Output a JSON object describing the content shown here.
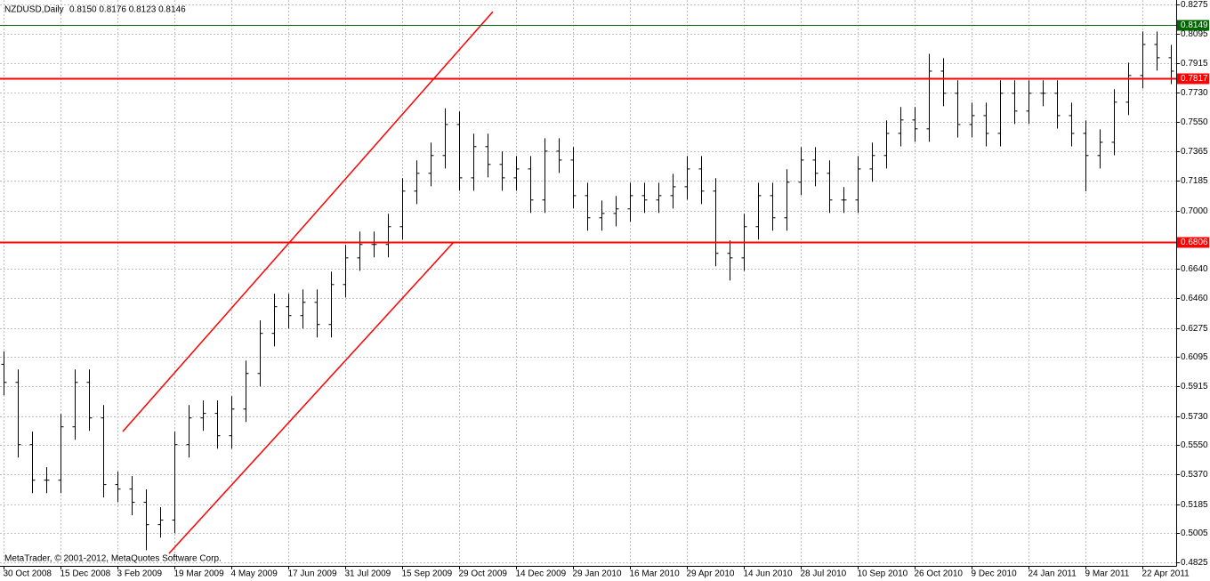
{
  "chart_data": {
    "type": "ohlc",
    "title": "NZDUSD,Daily",
    "subtitle": "0.8150 0.8176 0.8123 0.8146",
    "watermark": "MetaTrader, © 2001-2012, MetaQuotes Software Corp.",
    "color": "#000000",
    "grid": true,
    "xlim": [
      -2,
      659
    ],
    "ylim": [
      0.4803,
      0.8303
    ],
    "yticks": [
      0.8275,
      0.8095,
      0.7915,
      {
        "value": 0.773,
        "label": "0.7730"
      },
      {
        "value": 0.755,
        "label": "0.7550"
      },
      0.7365,
      0.7185,
      {
        "value": 0.7,
        "label": "0.7000"
      },
      {
        "value": 0.664,
        "label": "0.6640"
      },
      {
        "value": 0.646,
        "label": "0.6460"
      },
      0.6275,
      0.6095,
      0.5915,
      {
        "value": 0.573,
        "label": "0.5730"
      },
      {
        "value": 0.555,
        "label": "0.5550"
      },
      {
        "value": 0.537,
        "label": "0.5370"
      },
      0.5185,
      0.5005,
      0.4825
    ],
    "xticks": [
      {
        "value": 0,
        "label": "30 Oct 2008"
      },
      {
        "value": 32,
        "label": "15 Dec 2008"
      },
      {
        "value": 64,
        "label": "3 Feb 2009"
      },
      {
        "value": 96,
        "label": "19 Mar 2009"
      },
      {
        "value": 128,
        "label": "4 May 2009"
      },
      {
        "value": 160,
        "label": "17 Jun 2009"
      },
      {
        "value": 192,
        "label": "31 Jul 2009"
      },
      {
        "value": 224,
        "label": "15 Sep 2009"
      },
      {
        "value": 256,
        "label": "29 Oct 2009"
      },
      {
        "value": 288,
        "label": "14 Dec 2009"
      },
      {
        "value": 320,
        "label": "29 Jan 2010"
      },
      {
        "value": 352,
        "label": "16 Mar 2010"
      },
      {
        "value": 384,
        "label": "29 Apr 2010"
      },
      {
        "value": 416,
        "label": "14 Jun 2010"
      },
      {
        "value": 448,
        "label": "28 Jul 2010"
      },
      {
        "value": 480,
        "label": "10 Sep 2010"
      },
      {
        "value": 512,
        "label": "26 Oct 2010"
      },
      {
        "value": 544,
        "label": "9 Dec 2010"
      },
      {
        "value": 576,
        "label": "24 Jan 2011"
      },
      {
        "value": 608,
        "label": "9 Mar 2011"
      },
      {
        "value": 640,
        "label": "22 Apr 2011"
      }
    ],
    "x": [
      0,
      8,
      16,
      24,
      32,
      40,
      48,
      56,
      64,
      72,
      80,
      88,
      96,
      104,
      112,
      120,
      128,
      136,
      144,
      152,
      160,
      168,
      176,
      184,
      192,
      200,
      208,
      216,
      224,
      232,
      240,
      248,
      256,
      264,
      272,
      280,
      288,
      296,
      304,
      312,
      320,
      328,
      336,
      344,
      352,
      360,
      368,
      376,
      384,
      392,
      400,
      408,
      416,
      424,
      432,
      440,
      448,
      456,
      464,
      472,
      480,
      488,
      496,
      504,
      512,
      520,
      528,
      536,
      544,
      552,
      560,
      568,
      576,
      584,
      592,
      600,
      608,
      616,
      624,
      632,
      640,
      648,
      656
    ],
    "open": [
      0.605,
      0.5938,
      0.5553,
      0.5333,
      0.5333,
      0.5663,
      0.5938,
      0.5718,
      0.5306,
      0.5278,
      0.5196,
      0.5058,
      0.5086,
      0.5553,
      0.5718,
      0.5746,
      0.5608,
      0.5773,
      0.5993,
      0.6241,
      0.6406,
      0.6351,
      0.6433,
      0.6296,
      0.6543,
      0.6708,
      0.6791,
      0.6791,
      0.6901,
      0.7121,
      0.7231,
      0.7341,
      0.7533,
      0.7203,
      0.7396,
      0.7286,
      0.7203,
      0.7258,
      0.7066,
      0.7368,
      0.7313,
      0.7093,
      0.6956,
      0.6983,
      0.7011,
      0.7093,
      0.7066,
      0.7093,
      0.7148,
      0.7258,
      0.7121,
      0.6736,
      0.6708,
      0.6901,
      0.7093,
      0.6956,
      0.7176,
      0.7313,
      0.7231,
      0.7066,
      0.7066,
      0.7258,
      0.7341,
      0.7478,
      0.7561,
      0.7506,
      0.7863,
      0.7726,
      0.7533,
      0.7588,
      0.7478,
      0.7726,
      0.7616,
      0.7726,
      0.7726,
      0.7588,
      0.7478,
      0.7341,
      0.7423,
      0.7671,
      0.7836,
      0.8028,
      0.7946
    ],
    "high": [
      0.613,
      0.6018,
      0.5633,
      0.5413,
      0.5743,
      0.6018,
      0.6018,
      0.5798,
      0.5386,
      0.5358,
      0.5276,
      0.5166,
      0.5633,
      0.5798,
      0.5826,
      0.5826,
      0.5853,
      0.6073,
      0.6321,
      0.6486,
      0.6486,
      0.6513,
      0.6513,
      0.6623,
      0.6788,
      0.6871,
      0.6871,
      0.6981,
      0.7201,
      0.7311,
      0.7421,
      0.7633,
      0.7613,
      0.7476,
      0.7476,
      0.7366,
      0.7338,
      0.7338,
      0.7448,
      0.7448,
      0.7393,
      0.7173,
      0.7063,
      0.7091,
      0.7173,
      0.7173,
      0.7173,
      0.7228,
      0.7338,
      0.7338,
      0.7201,
      0.6816,
      0.6981,
      0.7173,
      0.7173,
      0.7256,
      0.7393,
      0.7393,
      0.7311,
      0.7146,
      0.7338,
      0.7421,
      0.7558,
      0.7641,
      0.7641,
      0.797,
      0.7943,
      0.7806,
      0.7668,
      0.7668,
      0.7806,
      0.7806,
      0.7806,
      0.7806,
      0.7806,
      0.7668,
      0.7558,
      0.7503,
      0.7751,
      0.7916,
      0.8108,
      0.8108,
      0.8026
    ],
    "low": [
      0.5858,
      0.5473,
      0.5253,
      0.5253,
      0.5253,
      0.5583,
      0.5638,
      0.5226,
      0.5198,
      0.5116,
      0.49,
      0.4978,
      0.5006,
      0.5473,
      0.5638,
      0.5528,
      0.5528,
      0.5693,
      0.5913,
      0.6161,
      0.6271,
      0.6271,
      0.6216,
      0.6216,
      0.6463,
      0.6628,
      0.6711,
      0.6711,
      0.6821,
      0.7041,
      0.7151,
      0.7261,
      0.7123,
      0.7123,
      0.7206,
      0.7123,
      0.7123,
      0.6986,
      0.6986,
      0.7233,
      0.7013,
      0.6876,
      0.6876,
      0.6903,
      0.6931,
      0.6986,
      0.6986,
      0.7013,
      0.7068,
      0.7041,
      0.6656,
      0.6568,
      0.6628,
      0.6821,
      0.6876,
      0.6876,
      0.7096,
      0.7151,
      0.6986,
      0.6986,
      0.6986,
      0.7178,
      0.7261,
      0.7398,
      0.7426,
      0.7426,
      0.7646,
      0.7453,
      0.7453,
      0.7398,
      0.7398,
      0.7536,
      0.7536,
      0.7646,
      0.7508,
      0.7398,
      0.712,
      0.7261,
      0.7343,
      0.7591,
      0.7756,
      0.7866,
      0.7783
    ],
    "close": [
      0.5938,
      0.5553,
      0.5333,
      0.5333,
      0.5663,
      0.5938,
      0.5718,
      0.5306,
      0.5278,
      0.5196,
      0.5058,
      0.5086,
      0.5553,
      0.5718,
      0.5746,
      0.5608,
      0.5773,
      0.5993,
      0.6241,
      0.6406,
      0.6351,
      0.6433,
      0.6296,
      0.6543,
      0.6708,
      0.6791,
      0.6791,
      0.6901,
      0.7121,
      0.7231,
      0.7341,
      0.7533,
      0.7203,
      0.7396,
      0.7286,
      0.7203,
      0.7258,
      0.7066,
      0.7368,
      0.7313,
      0.7093,
      0.6956,
      0.6983,
      0.7011,
      0.7093,
      0.7066,
      0.7093,
      0.7148,
      0.7258,
      0.7121,
      0.6736,
      0.6708,
      0.6901,
      0.7093,
      0.6956,
      0.7176,
      0.7313,
      0.7231,
      0.7066,
      0.7066,
      0.7258,
      0.7341,
      0.7478,
      0.7561,
      0.7506,
      0.7863,
      0.7726,
      0.7533,
      0.7588,
      0.7478,
      0.7726,
      0.7616,
      0.7726,
      0.7726,
      0.7588,
      0.7478,
      0.7341,
      0.7423,
      0.7671,
      0.7836,
      0.8028,
      0.7946,
      0.7863
    ],
    "hlines": [
      {
        "value": 0.8149,
        "label": "0.8149",
        "color": "#006400"
      },
      {
        "value": 0.7817,
        "label": "0.7817",
        "color": "#ff0000"
      },
      {
        "value": 0.6806,
        "label": "0.6806",
        "color": "#ff0000"
      }
    ],
    "trendlines": [
      {
        "x": [
          67,
          275
        ],
        "y": [
          0.5634,
          0.8231
        ],
        "color": "#ff0000"
      },
      {
        "x": [
          93,
          253
        ],
        "y": [
          0.488,
          0.6806
        ],
        "color": "#ff0000"
      }
    ]
  }
}
